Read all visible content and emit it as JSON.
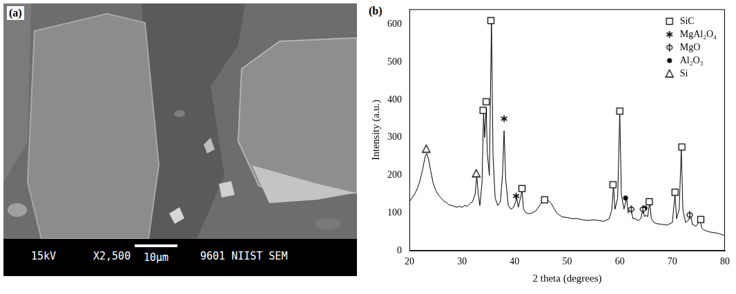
{
  "image_panel": {
    "label": "(a)",
    "info": [
      "15kV",
      "X2,500",
      "10μm",
      "9601 NIIST SEM"
    ]
  },
  "chart_data": {
    "panel_label": "(b)",
    "type": "line",
    "x_label": "2 theta (degrees)",
    "y_label": "Intensity (a.u.)",
    "xlim": [
      20,
      80
    ],
    "xticks": [
      20,
      30,
      40,
      50,
      60,
      70,
      80
    ],
    "ylim": [
      0,
      640
    ],
    "yticks": [
      0,
      100,
      200,
      300,
      400,
      500,
      600
    ],
    "grid": false,
    "legend": "upper right",
    "color": "#000000",
    "x": [
      20,
      20.5,
      21,
      21.5,
      22,
      22.5,
      23,
      23.3,
      23.6,
      24,
      24.5,
      25,
      25.5,
      26,
      26.5,
      27,
      27.5,
      28,
      28.5,
      29,
      29.5,
      30,
      30.5,
      31,
      31.5,
      32,
      32.5,
      32.8,
      33.1,
      33.4,
      33.8,
      34.1,
      34.3,
      34.6,
      34.8,
      35.2,
      35.6,
      35.9,
      36.3,
      36.8,
      37.3,
      37.7,
      38.0,
      38.3,
      38.8,
      39.3,
      39.8,
      40.2,
      40.4,
      40.7,
      41.2,
      41.4,
      41.7,
      42.2,
      42.8,
      43.3,
      44,
      44.5,
      45,
      45.5,
      46,
      46.5,
      47,
      47.5,
      48,
      48.5,
      49,
      50,
      51,
      52,
      53,
      54,
      55,
      56,
      57,
      58,
      58.5,
      58.8,
      59.1,
      59.6,
      60.0,
      60.3,
      60.8,
      61.3,
      61.6,
      62.1,
      62.5,
      63,
      63.5,
      64,
      64.4,
      64.7,
      65.0,
      65.3,
      65.7,
      66.0,
      66.5,
      67,
      68,
      69,
      70,
      70.5,
      70.8,
      71.3,
      71.7,
      72.0,
      72.5,
      73,
      73.5,
      73.8,
      74.5,
      75.3,
      75.6,
      76,
      77,
      78,
      79,
      80
    ],
    "values": [
      130,
      140,
      150,
      165,
      185,
      215,
      250,
      258,
      245,
      215,
      180,
      160,
      148,
      140,
      132,
      128,
      122,
      120,
      118,
      115,
      118,
      115,
      120,
      118,
      125,
      130,
      150,
      200,
      150,
      120,
      180,
      370,
      300,
      380,
      260,
      200,
      610,
      250,
      140,
      120,
      130,
      200,
      318,
      190,
      120,
      110,
      115,
      130,
      140,
      115,
      145,
      160,
      110,
      100,
      98,
      100,
      105,
      115,
      125,
      130,
      135,
      132,
      125,
      112,
      100,
      95,
      90,
      88,
      85,
      85,
      82,
      80,
      82,
      80,
      78,
      85,
      110,
      172,
      110,
      140,
      368,
      150,
      110,
      140,
      100,
      112,
      85,
      85,
      80,
      85,
      110,
      90,
      95,
      90,
      130,
      85,
      75,
      72,
      70,
      68,
      75,
      150,
      85,
      110,
      272,
      110,
      75,
      80,
      95,
      70,
      65,
      80,
      60,
      55,
      50,
      48,
      45,
      40
    ],
    "series": [
      {
        "name": "SiC",
        "type": "scatter",
        "marker": "square",
        "color": "#000000",
        "x": [
          34.0,
          34.6,
          35.5,
          41.4,
          45.7,
          58.7,
          60.0,
          65.6,
          70.5,
          71.8,
          75.4
        ],
        "values": [
          372,
          395,
          610,
          165,
          135,
          175,
          370,
          130,
          155,
          275,
          83
        ]
      },
      {
        "name": "MgAl₂O₄",
        "type": "scatter",
        "marker": "asterisk",
        "color": "#000000",
        "x": [
          38.0,
          40.3
        ],
        "values": [
          350,
          145
        ]
      },
      {
        "name": "MgO",
        "type": "scatter",
        "marker": "phi",
        "color": "#000000",
        "x": [
          62.2,
          64.4,
          73.3
        ],
        "values": [
          110,
          110,
          95
        ]
      },
      {
        "name": "Al₂O₃",
        "type": "scatter",
        "marker": "circle",
        "color": "#000000",
        "x": [
          61.1,
          64.8
        ],
        "values": [
          140,
          113
        ]
      },
      {
        "name": "Si",
        "type": "scatter",
        "marker": "triangle",
        "color": "#000000",
        "x": [
          23.2,
          32.7
        ],
        "values": [
          270,
          205
        ]
      }
    ]
  }
}
